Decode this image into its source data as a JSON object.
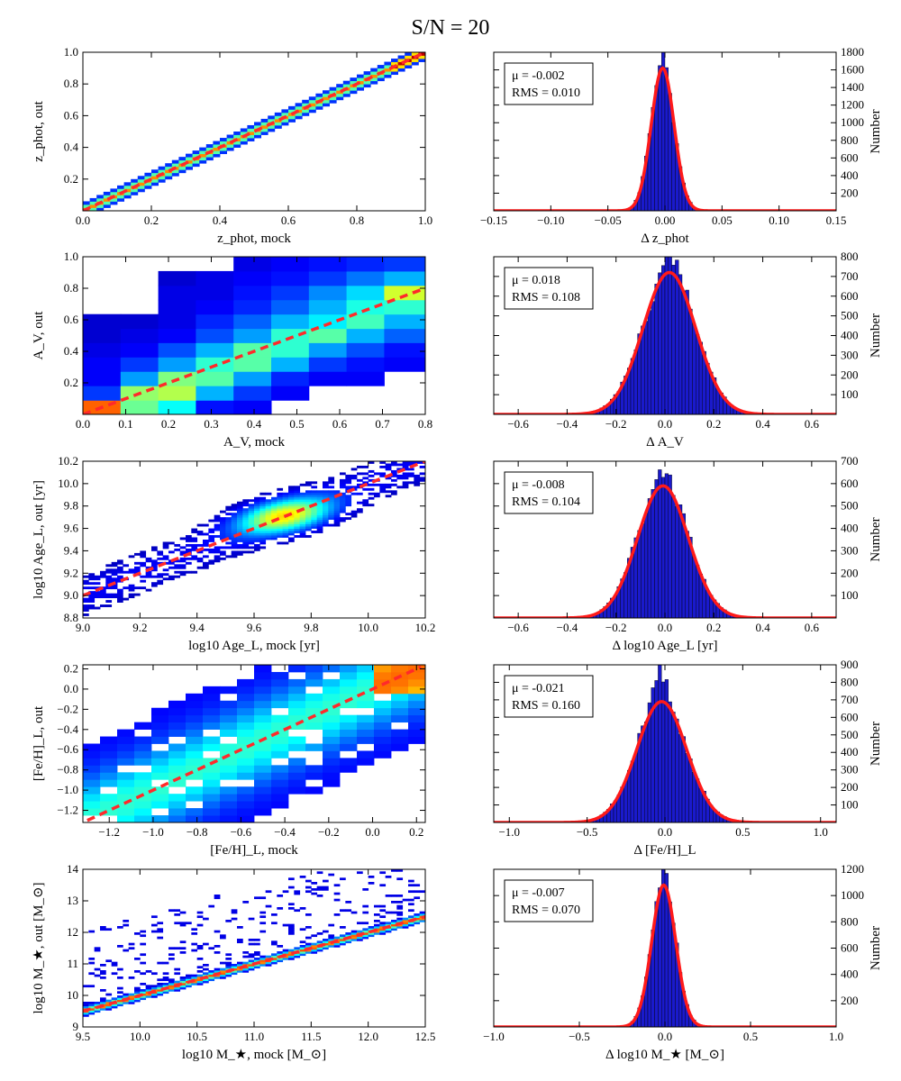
{
  "title": "S/N = 20",
  "colors": {
    "hist_bar": "#1a1acc",
    "fit_line": "#ff1a1a",
    "one_to_one": "#ff2a2a"
  },
  "chart_data": [
    {
      "type": "heatmap",
      "panel": "z-scatter",
      "xlabel": "z_phot, mock",
      "ylabel": "z_phot, out",
      "xlim": [
        0.0,
        1.0
      ],
      "ylim": [
        0.0,
        1.0
      ],
      "xticks": [
        "0.0",
        "0.2",
        "0.4",
        "0.6",
        "0.8",
        "1.0"
      ],
      "yticks": [
        "0.2",
        "0.4",
        "0.6",
        "0.8",
        "1.0"
      ],
      "xtick_values": [
        0.0,
        0.2,
        0.4,
        0.6,
        0.8,
        1.0
      ],
      "ytick_values": [
        0.2,
        0.4,
        0.6,
        0.8,
        1.0
      ],
      "one_to_one": [
        0.0,
        0.0,
        1.0,
        1.0
      ],
      "density_model": {
        "kind": "linear",
        "sigma": 0.018,
        "cells_x": 50,
        "cells_y": 50
      }
    },
    {
      "type": "bar",
      "panel": "z-hist",
      "xlabel": "Δ z_phot",
      "ylabel": "Number",
      "xlim": [
        -0.15,
        0.15
      ],
      "ylim": [
        0,
        1800
      ],
      "xticks": [
        "−0.15",
        "−0.10",
        "−0.05",
        "0.00",
        "0.05",
        "0.10",
        "0.15"
      ],
      "xtick_values": [
        -0.15,
        -0.1,
        -0.05,
        0,
        0.05,
        0.1,
        0.15
      ],
      "yticks": [
        "200",
        "400",
        "600",
        "800",
        "1000",
        "1200",
        "1400",
        "1600",
        "1800"
      ],
      "ytick_values": [
        200,
        400,
        600,
        800,
        1000,
        1200,
        1400,
        1600,
        1800
      ],
      "mu_label": "μ = -0.002",
      "rms_label": "RMS = 0.010",
      "fit": {
        "mu": -0.002,
        "sigma": 0.01,
        "amplitude": 1620
      },
      "bins": {
        "start": -0.15,
        "width": 0.003,
        "peak_boost": 180
      }
    },
    {
      "type": "heatmap",
      "panel": "av-scatter",
      "xlabel": "A_V, mock",
      "ylabel": "A_V, out",
      "xlim": [
        0.0,
        0.8
      ],
      "ylim": [
        0.0,
        1.0
      ],
      "xticks": [
        "0.0",
        "0.1",
        "0.2",
        "0.3",
        "0.4",
        "0.5",
        "0.6",
        "0.7",
        "0.8"
      ],
      "xtick_values": [
        0,
        0.1,
        0.2,
        0.3,
        0.4,
        0.5,
        0.6,
        0.7,
        0.8
      ],
      "yticks": [
        "0.2",
        "0.4",
        "0.6",
        "0.8",
        "1.0"
      ],
      "ytick_values": [
        0.2,
        0.4,
        0.6,
        0.8,
        1.0
      ],
      "one_to_one": [
        0.0,
        0.0,
        0.8,
        0.8
      ],
      "grid_cells": {
        "xbins": [
          0,
          0.088,
          0.176,
          0.264,
          0.352,
          0.44,
          0.528,
          0.616,
          0.704,
          0.8
        ],
        "ybins": [
          0,
          0.09,
          0.182,
          0.273,
          0.364,
          0.455,
          0.545,
          0.636,
          0.727,
          0.818,
          0.909,
          1.0
        ],
        "values": [
          [
            0.78,
            0.48,
            0.38,
            0.14,
            0.12,
            0.0,
            0.0,
            0.0,
            0.0
          ],
          [
            0.18,
            0.52,
            0.55,
            0.3,
            0.18,
            0.12,
            0.0,
            0.0,
            0.0
          ],
          [
            0.12,
            0.28,
            0.5,
            0.46,
            0.28,
            0.16,
            0.12,
            0.12,
            0.0
          ],
          [
            0.12,
            0.18,
            0.28,
            0.42,
            0.46,
            0.3,
            0.18,
            0.14,
            0.12
          ],
          [
            0.1,
            0.12,
            0.2,
            0.3,
            0.46,
            0.42,
            0.28,
            0.2,
            0.14
          ],
          [
            0.08,
            0.1,
            0.12,
            0.2,
            0.28,
            0.42,
            0.46,
            0.3,
            0.22
          ],
          [
            0.08,
            0.08,
            0.1,
            0.16,
            0.22,
            0.3,
            0.36,
            0.44,
            0.3
          ],
          [
            0.0,
            0.0,
            0.1,
            0.12,
            0.16,
            0.22,
            0.3,
            0.4,
            0.42
          ],
          [
            0.0,
            0.0,
            0.1,
            0.1,
            0.14,
            0.18,
            0.26,
            0.34,
            0.58
          ],
          [
            0.0,
            0.0,
            0.08,
            0.1,
            0.12,
            0.14,
            0.18,
            0.24,
            0.3
          ],
          [
            0.0,
            0.0,
            0.0,
            0.0,
            0.1,
            0.12,
            0.14,
            0.16,
            0.18
          ]
        ]
      }
    },
    {
      "type": "bar",
      "panel": "av-hist",
      "xlabel": "Δ A_V",
      "ylabel": "Number",
      "xlim": [
        -0.7,
        0.7
      ],
      "ylim": [
        0,
        800
      ],
      "xticks": [
        "−0.6",
        "−0.4",
        "−0.2",
        "0.0",
        "0.2",
        "0.4",
        "0.6"
      ],
      "xtick_values": [
        -0.6,
        -0.4,
        -0.2,
        0.0,
        0.2,
        0.4,
        0.6
      ],
      "yticks": [
        "100",
        "200",
        "300",
        "400",
        "500",
        "600",
        "700",
        "800"
      ],
      "ytick_values": [
        100,
        200,
        300,
        400,
        500,
        600,
        700,
        800
      ],
      "mu_label": "μ = 0.018",
      "rms_label": "RMS = 0.108",
      "fit": {
        "mu": 0.018,
        "sigma": 0.108,
        "amplitude": 720
      },
      "bins": {
        "start": -0.7,
        "width": 0.014,
        "peak_boost": 80
      }
    },
    {
      "type": "heatmap",
      "panel": "age-scatter",
      "xlabel": "log10 Age_L, mock [yr]",
      "ylabel": "log10 Age_L, out [yr]",
      "xlim": [
        9.0,
        10.2
      ],
      "ylim": [
        8.8,
        10.2
      ],
      "xticks": [
        "9.0",
        "9.2",
        "9.4",
        "9.6",
        "9.8",
        "10.0",
        "10.2"
      ],
      "xtick_values": [
        9.0,
        9.2,
        9.4,
        9.6,
        9.8,
        10.0,
        10.2
      ],
      "yticks": [
        "8.8",
        "9.0",
        "9.2",
        "9.4",
        "9.6",
        "9.8",
        "10.0",
        "10.2"
      ],
      "ytick_values": [
        8.8,
        9.0,
        9.2,
        9.4,
        9.6,
        9.8,
        10.0,
        10.2
      ],
      "one_to_one": [
        9.0,
        9.0,
        10.2,
        10.2
      ],
      "density_model": {
        "kind": "blob",
        "center": [
          9.7,
          9.72
        ],
        "sigma": 0.13,
        "cells_x": 60,
        "cells_y": 70
      }
    },
    {
      "type": "bar",
      "panel": "age-hist",
      "xlabel": "Δ log10 Age_L [yr]",
      "ylabel": "Number",
      "xlim": [
        -0.7,
        0.7
      ],
      "ylim": [
        0,
        700
      ],
      "xticks": [
        "−0.6",
        "−0.4",
        "−0.2",
        "0.0",
        "0.2",
        "0.4",
        "0.6"
      ],
      "xtick_values": [
        -0.6,
        -0.4,
        -0.2,
        0.0,
        0.2,
        0.4,
        0.6
      ],
      "yticks": [
        "100",
        "200",
        "300",
        "400",
        "500",
        "600",
        "700"
      ],
      "ytick_values": [
        100,
        200,
        300,
        400,
        500,
        600,
        700
      ],
      "mu_label": "μ = -0.008",
      "rms_label": "RMS = 0.104",
      "fit": {
        "mu": -0.008,
        "sigma": 0.104,
        "amplitude": 590
      },
      "bins": {
        "start": -0.7,
        "width": 0.014,
        "peak_boost": 40
      }
    },
    {
      "type": "heatmap",
      "panel": "feh-scatter",
      "xlabel": "[Fe/H]_L, mock",
      "ylabel": "[Fe/H]_L, out",
      "xlim": [
        -1.32,
        0.24
      ],
      "ylim": [
        -1.32,
        0.24
      ],
      "xticks": [
        "−1.2",
        "−1.0",
        "−0.8",
        "−0.6",
        "−0.4",
        "−0.2",
        "0.0",
        "0.2"
      ],
      "xtick_values": [
        -1.2,
        -1.0,
        -0.8,
        -0.6,
        -0.4,
        -0.2,
        0.0,
        0.2
      ],
      "yticks": [
        "−1.2",
        "−1.0",
        "−0.8",
        "−0.6",
        "−0.4",
        "−0.2",
        "0.0",
        "0.2"
      ],
      "ytick_values": [
        -1.2,
        -1.0,
        -0.8,
        -0.6,
        -0.4,
        -0.2,
        0.0,
        0.2
      ],
      "one_to_one": [
        -1.3,
        -1.3,
        0.22,
        0.22
      ],
      "density_model": {
        "kind": "wide",
        "sigma": 0.28,
        "cells_x": 20,
        "cells_y": 22
      }
    },
    {
      "type": "bar",
      "panel": "feh-hist",
      "xlabel": "Δ [Fe/H]_L",
      "ylabel": "Number",
      "xlim": [
        -1.1,
        1.1
      ],
      "ylim": [
        0,
        900
      ],
      "xticks": [
        "−1.0",
        "−0.5",
        "0.0",
        "0.5",
        "1.0"
      ],
      "xtick_values": [
        -1.0,
        -0.5,
        0.0,
        0.5,
        1.0
      ],
      "yticks": [
        "100",
        "200",
        "300",
        "400",
        "500",
        "600",
        "700",
        "800",
        "900"
      ],
      "ytick_values": [
        100,
        200,
        300,
        400,
        500,
        600,
        700,
        800,
        900
      ],
      "mu_label": "μ = -0.021",
      "rms_label": "RMS = 0.160",
      "fit": {
        "mu": -0.021,
        "sigma": 0.16,
        "amplitude": 690
      },
      "bins": {
        "start": -1.1,
        "width": 0.022,
        "peak_boost": 160
      }
    },
    {
      "type": "heatmap",
      "panel": "mass-scatter",
      "xlabel": "log10 M_★, mock [M_⊙]",
      "ylabel": "log10 M_★, out [M_⊙]",
      "xlim": [
        9.5,
        12.5
      ],
      "ylim": [
        9.0,
        14.0
      ],
      "xticks": [
        "9.5",
        "10.0",
        "10.5",
        "11.0",
        "11.5",
        "12.0",
        "12.5"
      ],
      "xtick_values": [
        9.5,
        10.0,
        10.5,
        11.0,
        11.5,
        12.0,
        12.5
      ],
      "yticks": [
        "9",
        "10",
        "11",
        "12",
        "13",
        "14"
      ],
      "ytick_values": [
        9,
        10,
        11,
        12,
        13,
        14
      ],
      "one_to_one": [
        9.5,
        9.5,
        12.5,
        12.5
      ],
      "density_model": {
        "kind": "linear-outliers",
        "sigma": 0.09,
        "cells_x": 60,
        "cells_y": 75
      }
    },
    {
      "type": "bar",
      "panel": "mass-hist",
      "xlabel": "Δ log10 M_★ [M_⊙]",
      "ylabel": "Number",
      "xlim": [
        -1.0,
        1.0
      ],
      "ylim": [
        0,
        1200
      ],
      "xticks": [
        "−1.0",
        "−0.5",
        "0.0",
        "0.5",
        "1.0"
      ],
      "xtick_values": [
        -1.0,
        -0.5,
        0.0,
        0.5,
        1.0
      ],
      "yticks": [
        "200",
        "400",
        "600",
        "800",
        "1000",
        "1200"
      ],
      "ytick_values": [
        200,
        400,
        600,
        800,
        1000,
        1200
      ],
      "mu_label": "μ = -0.007",
      "rms_label": "RMS = 0.070",
      "fit": {
        "mu": -0.007,
        "sigma": 0.07,
        "amplitude": 1080
      },
      "bins": {
        "start": -1.0,
        "width": 0.02,
        "peak_boost": 90
      }
    }
  ]
}
